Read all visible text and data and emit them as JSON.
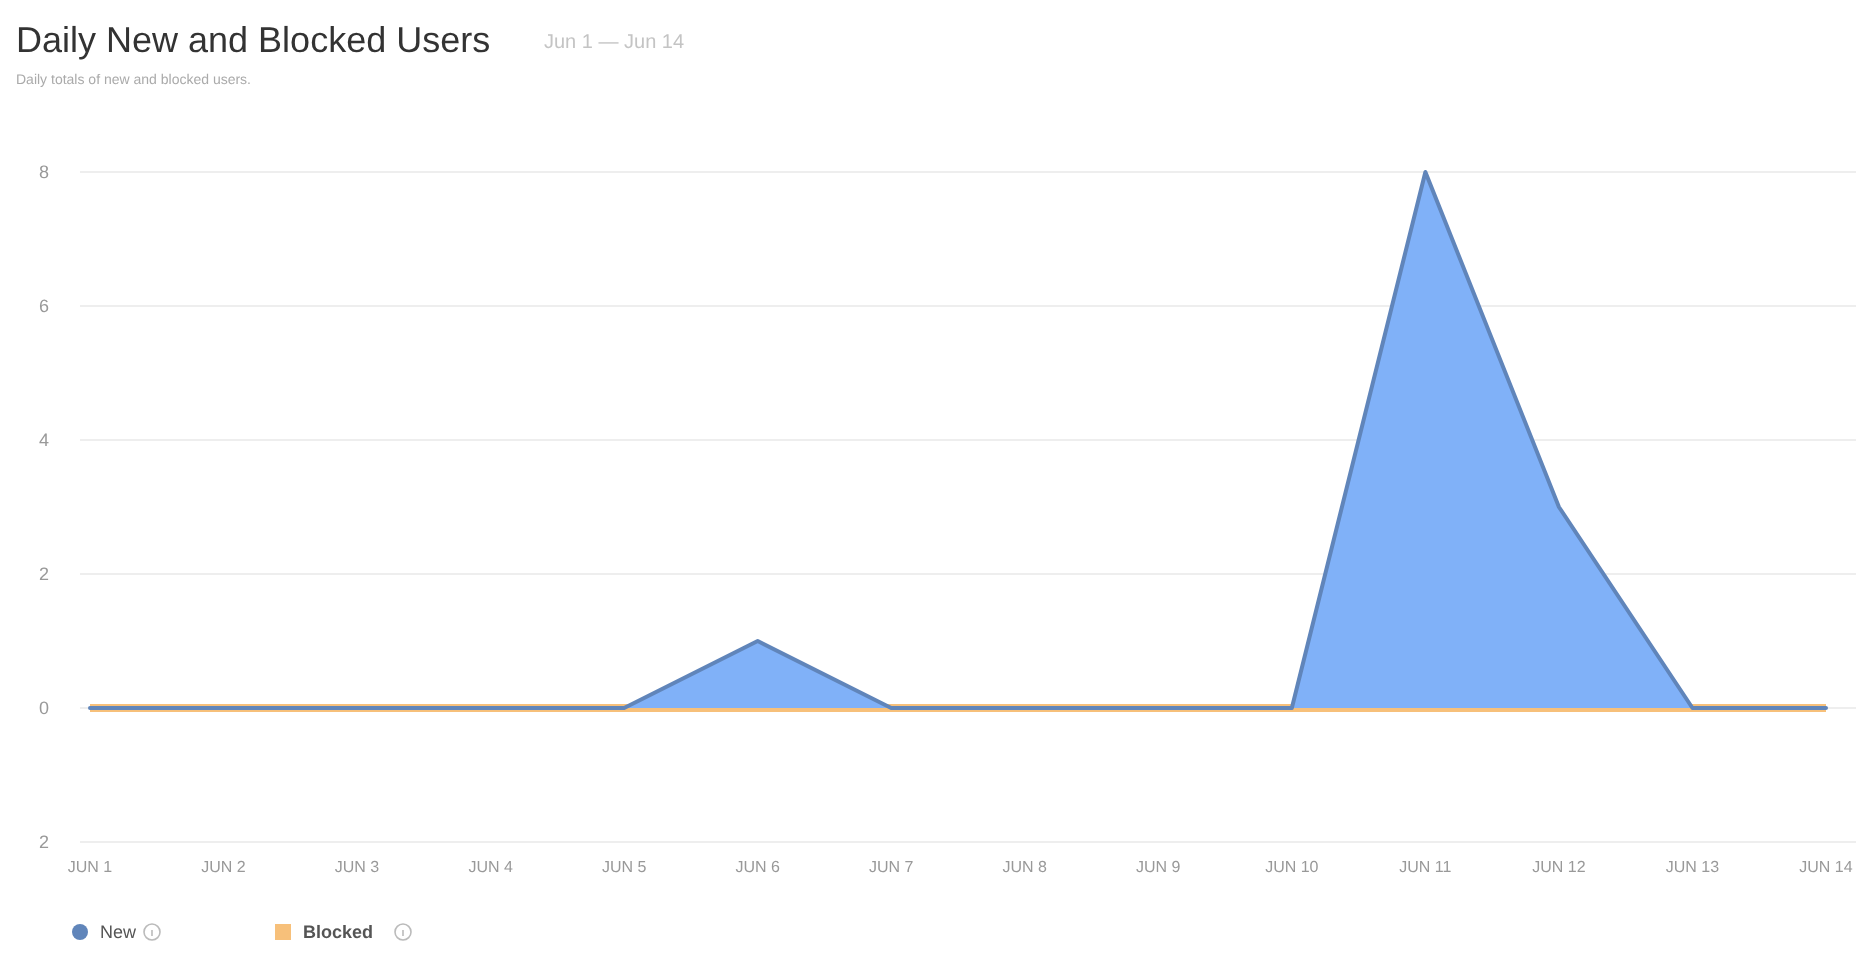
{
  "chart_data": {
    "type": "area",
    "title": "Daily New and Blocked Users",
    "subtitle": "Daily totals of new and blocked users.",
    "annotations": [
      "Jun 1 — Jun 14"
    ],
    "categories": [
      "JUN 1",
      "JUN 2",
      "JUN 3",
      "JUN 4",
      "JUN 5",
      "JUN 6",
      "JUN 7",
      "JUN 8",
      "JUN 9",
      "JUN 10",
      "JUN 11",
      "JUN 12",
      "JUN 13",
      "JUN 14"
    ],
    "series": [
      {
        "name": "Blocked",
        "type": "line",
        "color": "#f7c07a",
        "values": [
          0,
          0,
          0,
          0,
          0,
          0,
          0,
          0,
          0,
          0,
          0,
          0,
          0,
          0
        ]
      },
      {
        "name": "New",
        "color": "#80b1f8",
        "values": [
          0,
          0,
          0,
          0,
          0,
          1,
          0,
          0,
          0,
          0,
          8,
          3,
          0,
          0
        ]
      }
    ],
    "ylim": [
      -2,
      8
    ],
    "yticks": [
      {
        "value": -2,
        "label": "2"
      },
      0,
      2,
      4,
      6,
      8
    ],
    "grid": "y",
    "legend": "bottom left"
  }
}
